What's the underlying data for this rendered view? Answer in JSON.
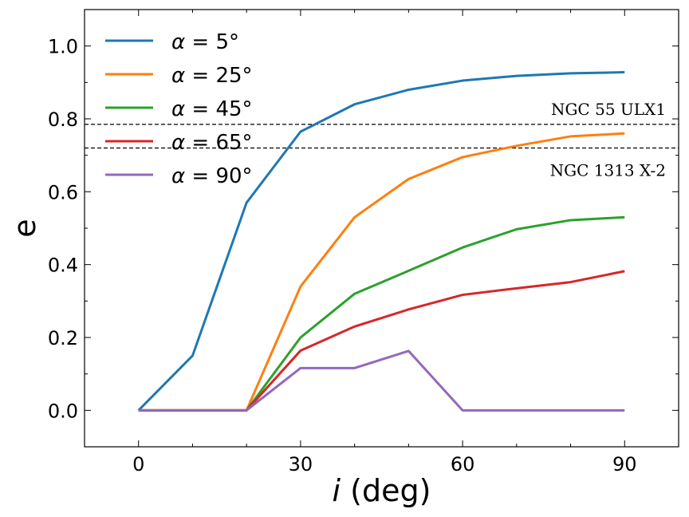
{
  "chart_data": {
    "type": "line",
    "title": "",
    "xlabel": "(deg)",
    "xlabel_symbol": "i",
    "ylabel": "e",
    "xlim": [
      -10,
      100
    ],
    "ylim": [
      -0.1,
      1.1
    ],
    "xticks": [
      0,
      30,
      60,
      90
    ],
    "xtick_labels": [
      "0",
      "30",
      "60",
      "90"
    ],
    "yticks": [
      0.0,
      0.2,
      0.4,
      0.6,
      0.8,
      1.0
    ],
    "ytick_labels": [
      "0.0",
      "0.2",
      "0.4",
      "0.6",
      "0.8",
      "1.0"
    ],
    "grid": false,
    "legend_position": "top-left",
    "x": [
      0,
      10,
      20,
      30,
      40,
      50,
      60,
      70,
      80,
      90
    ],
    "series": [
      {
        "name": "α = 5°",
        "symbol": "α",
        "eq": "= 5°",
        "color": "#1f77b4",
        "values": [
          0.0,
          0.15,
          0.57,
          0.765,
          0.84,
          0.88,
          0.905,
          0.918,
          0.925,
          0.928
        ]
      },
      {
        "name": "α = 25°",
        "symbol": "α",
        "eq": "= 25°",
        "color": "#ff7f0e",
        "values": [
          0.0,
          0.0,
          0.0,
          0.34,
          0.53,
          0.635,
          0.695,
          0.726,
          0.752,
          0.76
        ]
      },
      {
        "name": "α = 45°",
        "symbol": "α",
        "eq": "= 45°",
        "color": "#2ca02c",
        "values": [
          0.0,
          0.0,
          0.0,
          0.2,
          0.32,
          0.383,
          0.447,
          0.497,
          0.522,
          0.53
        ]
      },
      {
        "name": "α = 65°",
        "symbol": "α",
        "eq": "= 65°",
        "color": "#d62728",
        "values": [
          0.0,
          0.0,
          0.0,
          0.164,
          0.23,
          0.277,
          0.317,
          0.335,
          0.352,
          0.382
        ]
      },
      {
        "name": "α = 90°",
        "symbol": "α",
        "eq": "= 90°",
        "color": "#9467bd",
        "values": [
          0.0,
          0.0,
          0.0,
          0.116,
          0.116,
          0.163,
          0.0,
          0.0,
          0.0,
          0.0
        ]
      }
    ],
    "reference_lines": [
      {
        "label": "NGC 55 ULX1",
        "y": 0.785,
        "label_side": "above"
      },
      {
        "label": "NGC 1313 X-2",
        "y": 0.72,
        "label_side": "below"
      }
    ]
  }
}
